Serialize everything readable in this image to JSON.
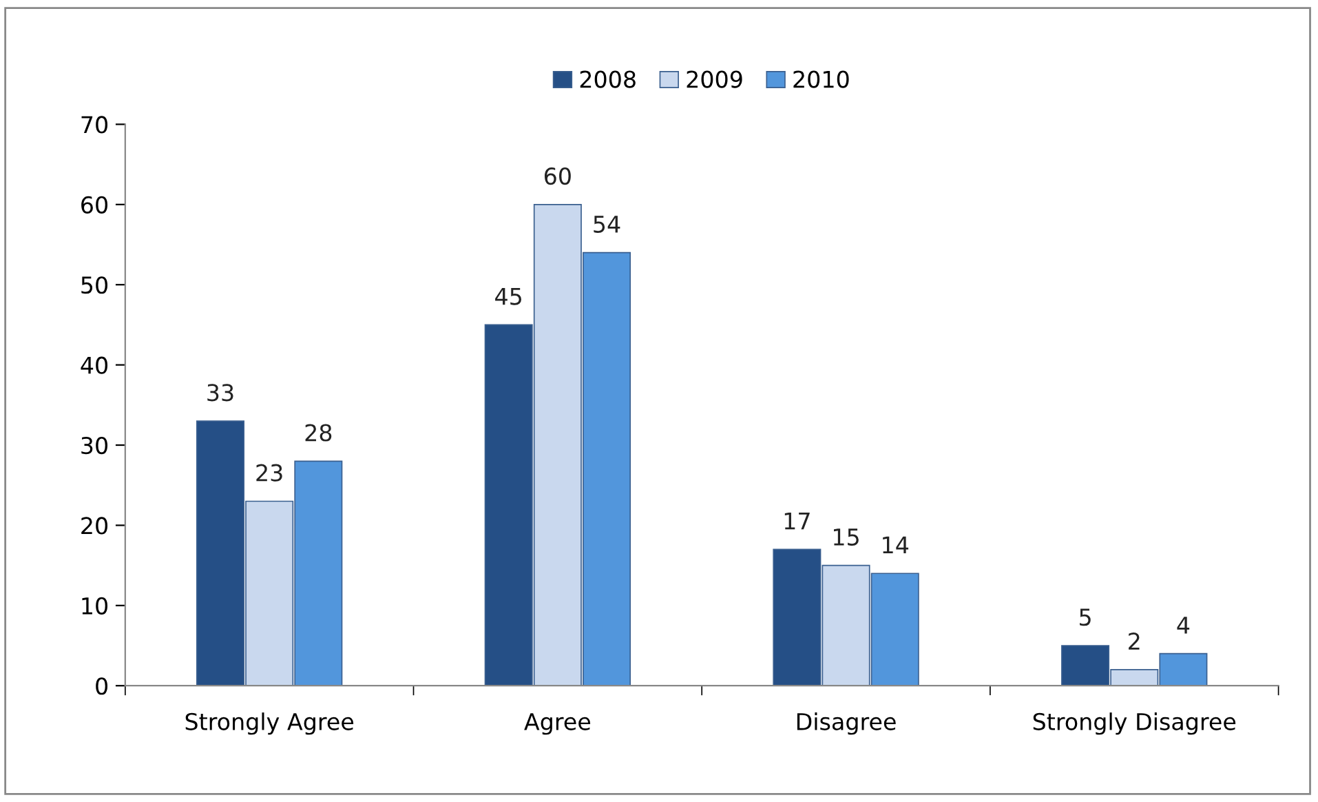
{
  "chart_data": {
    "type": "bar",
    "categories": [
      "Strongly Agree",
      "Agree",
      "Disagree",
      "Strongly Disagree"
    ],
    "series": [
      {
        "name": "2008",
        "color": "#254f86",
        "values": [
          33,
          45,
          17,
          5
        ]
      },
      {
        "name": "2009",
        "color": "#c9d8ee",
        "values": [
          23,
          60,
          15,
          2
        ]
      },
      {
        "name": "2010",
        "color": "#5296dc",
        "values": [
          28,
          54,
          14,
          4
        ]
      }
    ],
    "ylim": [
      0,
      70
    ],
    "yticks": [
      0,
      10,
      20,
      30,
      40,
      50,
      60,
      70
    ],
    "data_labels": true,
    "legend": "top",
    "grid": false
  }
}
